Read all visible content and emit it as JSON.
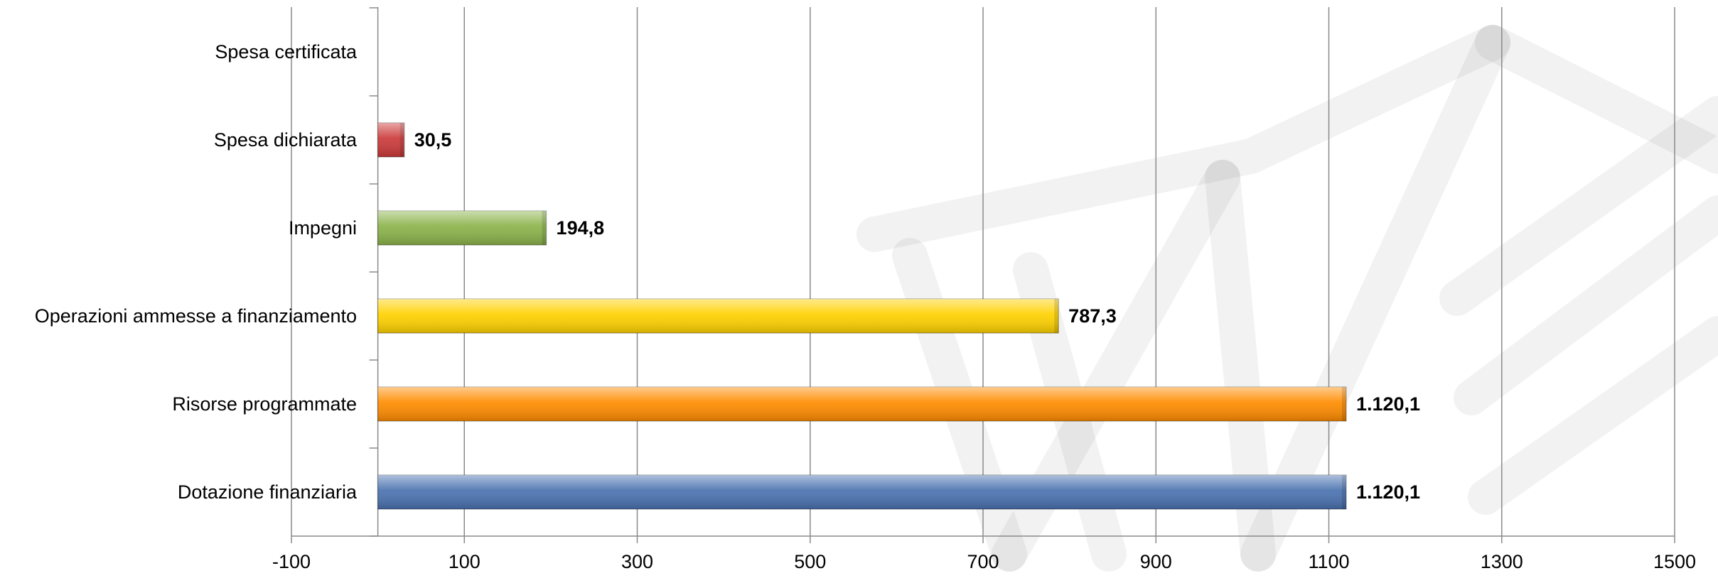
{
  "chart_data": {
    "type": "bar",
    "orientation": "horizontal",
    "categories": [
      "Dotazione finanziaria",
      "Risorse programmate",
      "Operazioni ammesse a finanziamento",
      "Impegni",
      "Spesa dichiarata",
      "Spesa certificata"
    ],
    "values": [
      1120.1,
      1120.1,
      787.3,
      194.8,
      30.5,
      0
    ],
    "value_labels": [
      "1.120,1",
      "1.120,1",
      "787,3",
      "194,8",
      "30,5",
      ""
    ],
    "bar_colors": [
      "#4a72b0",
      "#ff8c00",
      "#ffd200",
      "#8bb34a",
      "#cc3a3a",
      "#cccccc"
    ],
    "xlim": [
      -100,
      1500
    ],
    "xticks": [
      -100,
      100,
      300,
      500,
      700,
      900,
      1100,
      1300,
      1500
    ],
    "xtick_labels": [
      "-100",
      "100",
      "300",
      "500",
      "700",
      "900",
      "1100",
      "1300",
      "1500"
    ],
    "grid": true,
    "title": "",
    "xlabel": "",
    "ylabel": ""
  }
}
